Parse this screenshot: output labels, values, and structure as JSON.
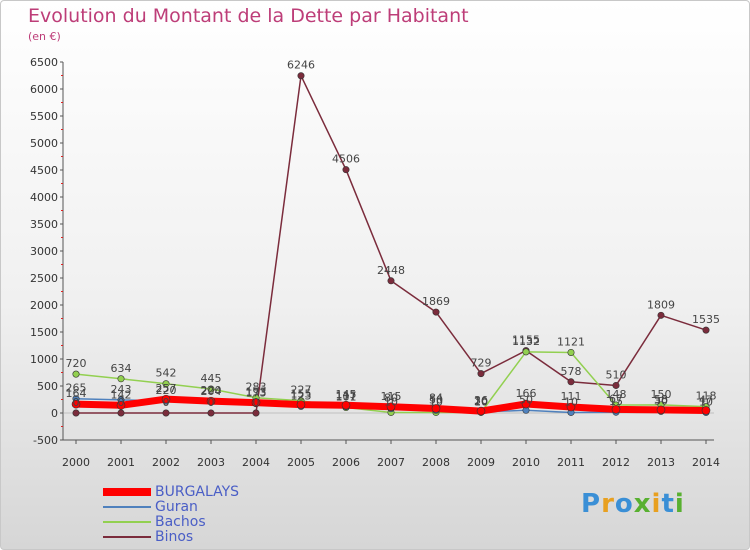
{
  "title": "Evolution du Montant de la Dette par Habitant",
  "subtitle": "(en €)",
  "logo": "Proxiti",
  "chart_data": {
    "type": "line",
    "x": [
      "2000",
      "2001",
      "2002",
      "2003",
      "2004",
      "2005",
      "2006",
      "2007",
      "2008",
      "2009",
      "2010",
      "2011",
      "2012",
      "2013",
      "2014"
    ],
    "ylim": [
      -500,
      6500
    ],
    "yticks": [
      -500,
      0,
      500,
      1000,
      1500,
      2000,
      2500,
      3000,
      3500,
      4000,
      4500,
      5000,
      5500,
      6000,
      6500
    ],
    "grid": false,
    "legend": "bottom-left",
    "series": [
      {
        "name": "BURGALAYS",
        "color": "#ff0000",
        "values": [
          164,
          142,
          257,
          220,
          193,
          155,
          145,
          115,
          84,
          36,
          166,
          111,
          67,
          58,
          47
        ]
      },
      {
        "name": "Guran",
        "color": "#4f81bd",
        "values": [
          265,
          243,
          220,
          204,
          173,
          123,
          117,
          80,
          50,
          20,
          50,
          10,
          15,
          30,
          10
        ]
      },
      {
        "name": "Bachos",
        "color": "#92d050",
        "values": [
          720,
          634,
          542,
          445,
          283,
          227,
          101,
          10,
          10,
          10,
          1132,
          1121,
          148,
          150,
          118
        ]
      },
      {
        "name": "Binos",
        "color": "#7b2c3c",
        "values": [
          0,
          0,
          0,
          0,
          0,
          6246,
          4506,
          2448,
          1869,
          729,
          1155,
          578,
          510,
          1809,
          1535
        ]
      }
    ]
  }
}
